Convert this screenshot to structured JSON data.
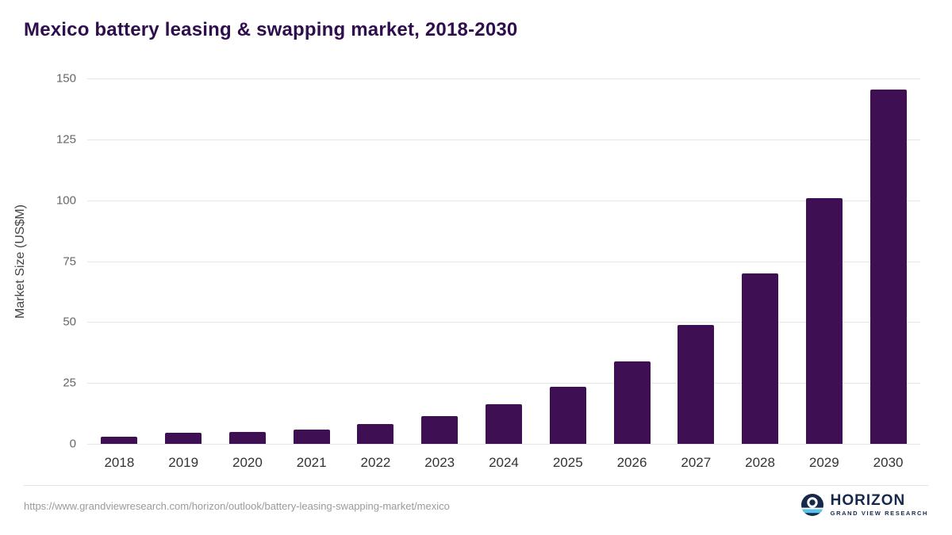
{
  "chart_data": {
    "type": "bar",
    "title": "Mexico battery leasing & swapping market, 2018-2030",
    "categories": [
      "2018",
      "2019",
      "2020",
      "2021",
      "2022",
      "2023",
      "2024",
      "2025",
      "2026",
      "2027",
      "2028",
      "2029",
      "2030"
    ],
    "values": [
      3,
      4.4,
      5,
      5.8,
      8,
      11.4,
      16.2,
      23.4,
      34,
      48.8,
      69.8,
      100.9,
      145.4
    ],
    "xlabel": "",
    "ylabel": "Market Size (US$M)",
    "ylim": [
      0,
      150
    ],
    "yticks": [
      0,
      25,
      50,
      75,
      100,
      125,
      150
    ],
    "bar_color": "#3e1053",
    "grid": true,
    "legend": false
  },
  "footer": {
    "source_url": "https://www.grandviewresearch.com/horizon/outlook/battery-leasing-swapping-market/mexico",
    "logo_text": "HORIZON",
    "logo_subtext": "GRAND VIEW RESEARCH"
  },
  "colors": {
    "title": "#2f0e4d",
    "bar": "#3e1053",
    "gridline": "#e6e6e6",
    "tick_text": "#666666",
    "x_label_text": "#333333",
    "logo_navy": "#17294b",
    "logo_blue": "#56c5e8"
  }
}
